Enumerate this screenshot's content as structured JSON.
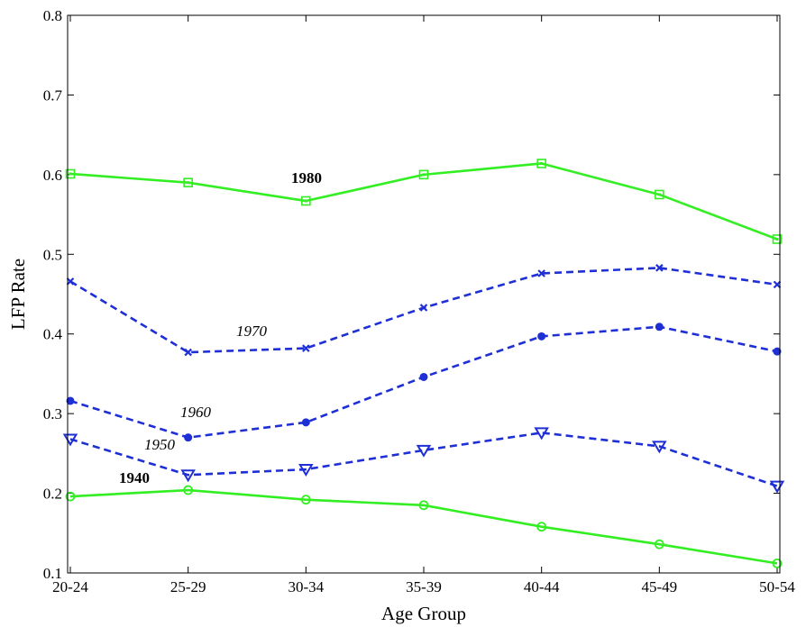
{
  "chart_data": {
    "type": "line",
    "title": "",
    "xlabel": "Age Group",
    "ylabel": "LFP Rate",
    "categories": [
      "20-24",
      "25-29",
      "30-34",
      "35-39",
      "40-44",
      "45-49",
      "50-54"
    ],
    "ylim": [
      0.1,
      0.8
    ],
    "yticks": [
      0.1,
      0.2,
      0.3,
      0.4,
      0.5,
      0.6,
      0.7,
      0.8
    ],
    "ytick_labels": [
      "0.1",
      "0.2",
      "0.3",
      "0.4",
      "0.5",
      "0.6",
      "0.7",
      "0.8"
    ],
    "grid": false,
    "legend": "none",
    "series": [
      {
        "name": "1980",
        "values": [
          0.601,
          0.59,
          0.567,
          0.6,
          0.614,
          0.575,
          0.519
        ],
        "color": "#33ee22",
        "dash": "solid",
        "marker": "square",
        "label_style": "bold"
      },
      {
        "name": "1970",
        "values": [
          0.466,
          0.377,
          0.382,
          0.433,
          0.476,
          0.483,
          0.462
        ],
        "color": "#1f2fd6",
        "dash": "dashed",
        "marker": "x",
        "label_style": "italic"
      },
      {
        "name": "1960",
        "values": [
          0.316,
          0.27,
          0.289,
          0.346,
          0.397,
          0.409,
          0.378
        ],
        "color": "#1f2fd6",
        "dash": "dashed",
        "marker": "circle-filled",
        "label_style": "italic"
      },
      {
        "name": "1950",
        "values": [
          0.268,
          0.223,
          0.23,
          0.254,
          0.276,
          0.259,
          0.209
        ],
        "color": "#1f2fd6",
        "dash": "dashed",
        "marker": "triangle-down",
        "label_style": "italic"
      },
      {
        "name": "1940",
        "values": [
          0.196,
          0.204,
          0.192,
          0.185,
          0.158,
          0.136,
          0.112
        ],
        "color": "#33ee22",
        "dash": "solid",
        "marker": "circle-open",
        "label_style": "bold"
      }
    ]
  }
}
